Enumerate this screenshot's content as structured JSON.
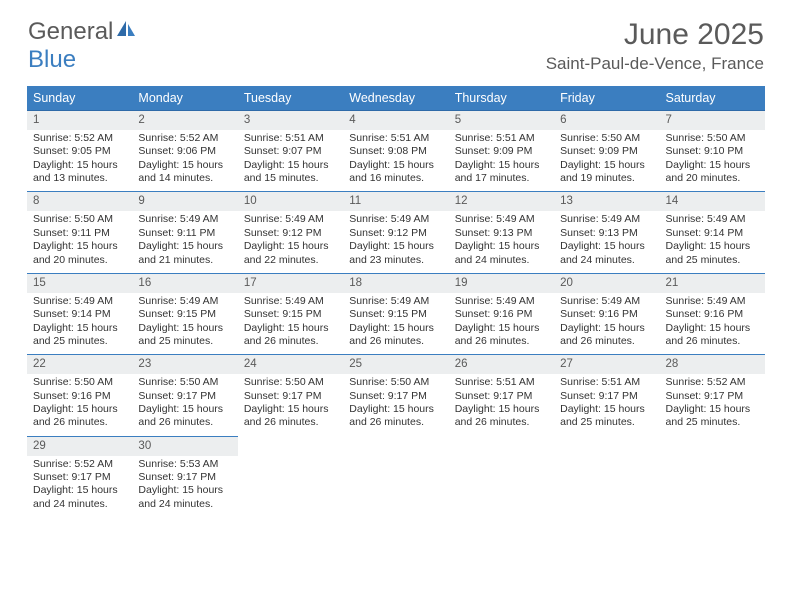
{
  "brand": {
    "part1": "General",
    "part2": "Blue"
  },
  "title": "June 2025",
  "location": "Saint-Paul-de-Vence, France",
  "colors": {
    "header_bg": "#3b7ec0",
    "header_border": "#2e6aa8",
    "daynum_bg": "#eceeef",
    "text": "#333333",
    "muted": "#5a5a5a"
  },
  "weekdays": [
    "Sunday",
    "Monday",
    "Tuesday",
    "Wednesday",
    "Thursday",
    "Friday",
    "Saturday"
  ],
  "weeks": [
    [
      {
        "n": "1",
        "sr": "Sunrise: 5:52 AM",
        "ss": "Sunset: 9:05 PM",
        "d1": "Daylight: 15 hours",
        "d2": "and 13 minutes."
      },
      {
        "n": "2",
        "sr": "Sunrise: 5:52 AM",
        "ss": "Sunset: 9:06 PM",
        "d1": "Daylight: 15 hours",
        "d2": "and 14 minutes."
      },
      {
        "n": "3",
        "sr": "Sunrise: 5:51 AM",
        "ss": "Sunset: 9:07 PM",
        "d1": "Daylight: 15 hours",
        "d2": "and 15 minutes."
      },
      {
        "n": "4",
        "sr": "Sunrise: 5:51 AM",
        "ss": "Sunset: 9:08 PM",
        "d1": "Daylight: 15 hours",
        "d2": "and 16 minutes."
      },
      {
        "n": "5",
        "sr": "Sunrise: 5:51 AM",
        "ss": "Sunset: 9:09 PM",
        "d1": "Daylight: 15 hours",
        "d2": "and 17 minutes."
      },
      {
        "n": "6",
        "sr": "Sunrise: 5:50 AM",
        "ss": "Sunset: 9:09 PM",
        "d1": "Daylight: 15 hours",
        "d2": "and 19 minutes."
      },
      {
        "n": "7",
        "sr": "Sunrise: 5:50 AM",
        "ss": "Sunset: 9:10 PM",
        "d1": "Daylight: 15 hours",
        "d2": "and 20 minutes."
      }
    ],
    [
      {
        "n": "8",
        "sr": "Sunrise: 5:50 AM",
        "ss": "Sunset: 9:11 PM",
        "d1": "Daylight: 15 hours",
        "d2": "and 20 minutes."
      },
      {
        "n": "9",
        "sr": "Sunrise: 5:49 AM",
        "ss": "Sunset: 9:11 PM",
        "d1": "Daylight: 15 hours",
        "d2": "and 21 minutes."
      },
      {
        "n": "10",
        "sr": "Sunrise: 5:49 AM",
        "ss": "Sunset: 9:12 PM",
        "d1": "Daylight: 15 hours",
        "d2": "and 22 minutes."
      },
      {
        "n": "11",
        "sr": "Sunrise: 5:49 AM",
        "ss": "Sunset: 9:12 PM",
        "d1": "Daylight: 15 hours",
        "d2": "and 23 minutes."
      },
      {
        "n": "12",
        "sr": "Sunrise: 5:49 AM",
        "ss": "Sunset: 9:13 PM",
        "d1": "Daylight: 15 hours",
        "d2": "and 24 minutes."
      },
      {
        "n": "13",
        "sr": "Sunrise: 5:49 AM",
        "ss": "Sunset: 9:13 PM",
        "d1": "Daylight: 15 hours",
        "d2": "and 24 minutes."
      },
      {
        "n": "14",
        "sr": "Sunrise: 5:49 AM",
        "ss": "Sunset: 9:14 PM",
        "d1": "Daylight: 15 hours",
        "d2": "and 25 minutes."
      }
    ],
    [
      {
        "n": "15",
        "sr": "Sunrise: 5:49 AM",
        "ss": "Sunset: 9:14 PM",
        "d1": "Daylight: 15 hours",
        "d2": "and 25 minutes."
      },
      {
        "n": "16",
        "sr": "Sunrise: 5:49 AM",
        "ss": "Sunset: 9:15 PM",
        "d1": "Daylight: 15 hours",
        "d2": "and 25 minutes."
      },
      {
        "n": "17",
        "sr": "Sunrise: 5:49 AM",
        "ss": "Sunset: 9:15 PM",
        "d1": "Daylight: 15 hours",
        "d2": "and 26 minutes."
      },
      {
        "n": "18",
        "sr": "Sunrise: 5:49 AM",
        "ss": "Sunset: 9:15 PM",
        "d1": "Daylight: 15 hours",
        "d2": "and 26 minutes."
      },
      {
        "n": "19",
        "sr": "Sunrise: 5:49 AM",
        "ss": "Sunset: 9:16 PM",
        "d1": "Daylight: 15 hours",
        "d2": "and 26 minutes."
      },
      {
        "n": "20",
        "sr": "Sunrise: 5:49 AM",
        "ss": "Sunset: 9:16 PM",
        "d1": "Daylight: 15 hours",
        "d2": "and 26 minutes."
      },
      {
        "n": "21",
        "sr": "Sunrise: 5:49 AM",
        "ss": "Sunset: 9:16 PM",
        "d1": "Daylight: 15 hours",
        "d2": "and 26 minutes."
      }
    ],
    [
      {
        "n": "22",
        "sr": "Sunrise: 5:50 AM",
        "ss": "Sunset: 9:16 PM",
        "d1": "Daylight: 15 hours",
        "d2": "and 26 minutes."
      },
      {
        "n": "23",
        "sr": "Sunrise: 5:50 AM",
        "ss": "Sunset: 9:17 PM",
        "d1": "Daylight: 15 hours",
        "d2": "and 26 minutes."
      },
      {
        "n": "24",
        "sr": "Sunrise: 5:50 AM",
        "ss": "Sunset: 9:17 PM",
        "d1": "Daylight: 15 hours",
        "d2": "and 26 minutes."
      },
      {
        "n": "25",
        "sr": "Sunrise: 5:50 AM",
        "ss": "Sunset: 9:17 PM",
        "d1": "Daylight: 15 hours",
        "d2": "and 26 minutes."
      },
      {
        "n": "26",
        "sr": "Sunrise: 5:51 AM",
        "ss": "Sunset: 9:17 PM",
        "d1": "Daylight: 15 hours",
        "d2": "and 26 minutes."
      },
      {
        "n": "27",
        "sr": "Sunrise: 5:51 AM",
        "ss": "Sunset: 9:17 PM",
        "d1": "Daylight: 15 hours",
        "d2": "and 25 minutes."
      },
      {
        "n": "28",
        "sr": "Sunrise: 5:52 AM",
        "ss": "Sunset: 9:17 PM",
        "d1": "Daylight: 15 hours",
        "d2": "and 25 minutes."
      }
    ],
    [
      {
        "n": "29",
        "sr": "Sunrise: 5:52 AM",
        "ss": "Sunset: 9:17 PM",
        "d1": "Daylight: 15 hours",
        "d2": "and 24 minutes."
      },
      {
        "n": "30",
        "sr": "Sunrise: 5:53 AM",
        "ss": "Sunset: 9:17 PM",
        "d1": "Daylight: 15 hours",
        "d2": "and 24 minutes."
      },
      null,
      null,
      null,
      null,
      null
    ]
  ]
}
